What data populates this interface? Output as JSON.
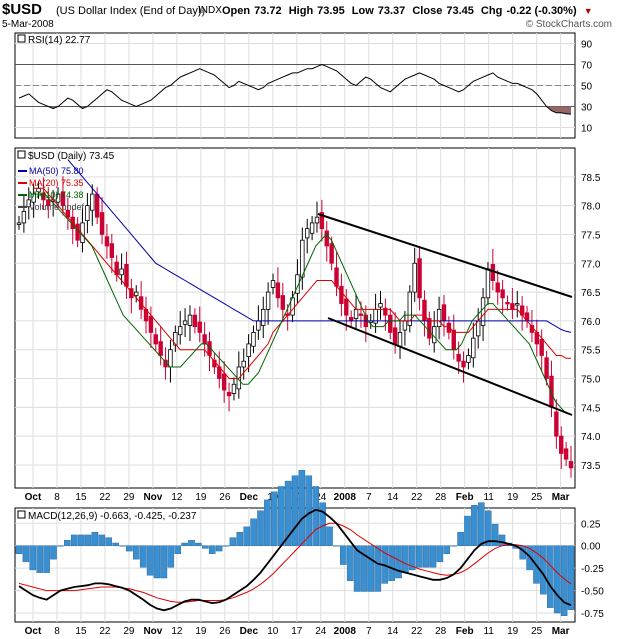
{
  "header": {
    "symbol": "$USD",
    "description": "(US Dollar Index (End of Day))",
    "exchange": "INDX",
    "open_label": "Open",
    "open": "73.72",
    "high_label": "High",
    "high": "73.95",
    "low_label": "Low",
    "low": "73.37",
    "close_label": "Close",
    "close": "73.45",
    "chg_label": "Chg",
    "chg": "-0.22 (-0.30%)",
    "down_arrow": "▼",
    "date": "5-Mar-2008",
    "source": "© StockCharts.com"
  },
  "colors": {
    "up": "#000000",
    "down": "#cc0033",
    "ma50": "#0000aa",
    "ma20": "#dd0000",
    "ma10": "#006600",
    "rsi_fill": "#996666",
    "hist": "#3a8fd0",
    "grid": "#dddddd"
  },
  "chart_data": [
    {
      "type": "line",
      "title": "RSI(14) 22.77",
      "series": [
        {
          "name": "RSI(14)",
          "values": [
            38,
            40,
            42,
            38,
            34,
            32,
            30,
            28,
            30,
            34,
            38,
            36,
            32,
            28,
            30,
            34,
            38,
            42,
            46,
            44,
            40,
            36,
            34,
            32,
            30,
            32,
            34,
            36,
            40,
            44,
            48,
            50,
            54,
            58,
            60,
            62,
            64,
            66,
            64,
            62,
            60,
            56,
            52,
            48,
            50,
            54,
            52,
            50,
            48,
            46,
            48,
            52,
            54,
            56,
            58,
            60,
            62,
            62,
            64,
            66,
            66,
            68,
            70,
            68,
            66,
            64,
            60,
            56,
            52,
            50,
            54,
            58,
            56,
            52,
            48,
            46,
            44,
            48,
            52,
            56,
            58,
            60,
            62,
            60,
            58,
            56,
            52,
            50,
            48,
            46,
            44,
            46,
            50,
            54,
            56,
            58,
            60,
            62,
            58,
            56,
            54,
            52,
            52,
            50,
            48,
            46,
            42,
            36,
            30,
            26,
            24,
            24,
            23,
            22.77
          ]
        }
      ],
      "ylim": [
        0,
        100
      ],
      "yticks": [
        "90",
        "70",
        "50",
        "30",
        "10"
      ],
      "reference_lines": [
        70,
        50,
        30
      ]
    },
    {
      "type": "line",
      "title": "$USD (Daily) 73.45",
      "legend": [
        "MA(50) 75.80",
        "MA(20) 75.35",
        "MA(10) 74.38",
        "Volume undef"
      ],
      "series": [
        {
          "name": "$USD (Daily)",
          "values": [
            77.7,
            77.9,
            78.1,
            78.2,
            78.3,
            78.1,
            78.0,
            78.1,
            78.2,
            78.0,
            77.8,
            77.6,
            77.4,
            77.7,
            78.0,
            78.2,
            77.8,
            77.5,
            77.3,
            77.1,
            76.8,
            76.9,
            76.6,
            76.4,
            76.5,
            76.2,
            76.0,
            75.8,
            75.6,
            75.4,
            75.2,
            75.5,
            75.8,
            75.9,
            76.0,
            76.1,
            75.9,
            75.8,
            75.6,
            75.4,
            75.2,
            75.0,
            74.8,
            74.7,
            74.9,
            75.2,
            75.3,
            75.6,
            75.8,
            76.0,
            76.2,
            76.5,
            76.7,
            76.4,
            76.2,
            76.1,
            76.4,
            76.8,
            77.4,
            77.6,
            77.7,
            77.8,
            77.6,
            77.3,
            77.0,
            76.6,
            76.3,
            76.1,
            76.0,
            76.2,
            76.1,
            75.9,
            76.0,
            76.2,
            76.3,
            76.1,
            75.8,
            75.6,
            75.8,
            76.0,
            76.5,
            77.0,
            76.4,
            76.0,
            75.7,
            75.9,
            76.2,
            76.0,
            75.8,
            75.5,
            75.3,
            75.2,
            75.4,
            75.7,
            76.0,
            76.4,
            76.9,
            76.7,
            76.5,
            76.4,
            76.3,
            76.2,
            76.3,
            76.1,
            76.0,
            75.8,
            75.6,
            75.4,
            75.0,
            74.5,
            74.0,
            73.7,
            73.6,
            73.45
          ]
        },
        {
          "name": "MA(50)",
          "values": [
            null,
            null,
            null,
            null,
            null,
            null,
            null,
            null,
            null,
            null,
            78.8,
            78.7,
            78.6,
            78.5,
            78.4,
            78.3,
            78.2,
            78.1,
            78.0,
            77.9,
            77.8,
            77.7,
            77.6,
            77.5,
            77.4,
            77.3,
            77.2,
            77.1,
            77.0,
            76.95,
            76.9,
            76.85,
            76.8,
            76.75,
            76.7,
            76.65,
            76.6,
            76.55,
            76.5,
            76.45,
            76.4,
            76.35,
            76.3,
            76.25,
            76.2,
            76.15,
            76.1,
            76.05,
            76.0,
            76.0,
            76.0,
            76.0,
            76.0,
            76.0,
            76.0,
            76.0,
            76.0,
            76.0,
            76.0,
            76.0,
            76.0,
            76.0,
            76.0,
            76.0,
            76.0,
            76.0,
            76.0,
            76.0,
            76.0,
            76.0,
            76.0,
            76.0,
            76.0,
            76.0,
            76.0,
            76.0,
            76.0,
            76.0,
            76.0,
            76.0,
            76.0,
            76.0,
            76.0,
            76.0,
            76.0,
            76.0,
            76.0,
            76.0,
            76.0,
            76.0,
            76.0,
            76.0,
            76.0,
            76.0,
            76.0,
            76.0,
            76.0,
            76.0,
            76.0,
            76.0,
            76.0,
            76.0,
            76.0,
            76.0,
            76.0,
            76.0,
            76.0,
            76.0,
            76.0,
            75.95,
            75.9,
            75.85,
            75.82,
            75.8
          ]
        },
        {
          "name": "MA(20)",
          "values": [
            null,
            null,
            null,
            78.3,
            78.3,
            78.3,
            78.2,
            78.1,
            78.0,
            77.9,
            77.8,
            77.7,
            77.6,
            77.5,
            77.4,
            77.3,
            77.2,
            77.1,
            77.0,
            76.9,
            76.8,
            76.7,
            76.6,
            76.5,
            76.4,
            76.3,
            76.2,
            76.1,
            76.0,
            75.9,
            75.8,
            75.7,
            75.6,
            75.5,
            75.5,
            75.5,
            75.5,
            75.5,
            75.5,
            75.4,
            75.3,
            75.2,
            75.1,
            75.0,
            75.0,
            75.0,
            75.1,
            75.2,
            75.3,
            75.4,
            75.5,
            75.6,
            75.8,
            75.9,
            76.0,
            76.1,
            76.2,
            76.3,
            76.4,
            76.5,
            76.6,
            76.7,
            76.7,
            76.7,
            76.7,
            76.6,
            76.5,
            76.4,
            76.3,
            76.2,
            76.2,
            76.2,
            76.2,
            76.2,
            76.2,
            76.2,
            76.2,
            76.1,
            76.0,
            76.0,
            76.0,
            76.1,
            76.1,
            76.1,
            76.0,
            76.0,
            76.0,
            75.9,
            75.9,
            75.8,
            75.8,
            75.8,
            75.8,
            75.9,
            76.0,
            76.1,
            76.2,
            76.2,
            76.2,
            76.2,
            76.2,
            76.2,
            76.2,
            76.1,
            76.0,
            75.9,
            75.8,
            75.7,
            75.6,
            75.5,
            75.4,
            75.4,
            75.35,
            75.35
          ]
        },
        {
          "name": "MA(10)",
          "values": [
            null,
            null,
            null,
            78.2,
            78.2,
            78.2,
            78.1,
            78.0,
            77.9,
            77.8,
            77.7,
            77.6,
            77.5,
            77.4,
            77.3,
            77.1,
            76.9,
            76.7,
            76.5,
            76.3,
            76.1,
            76.0,
            75.9,
            75.8,
            75.7,
            75.6,
            75.5,
            75.4,
            75.3,
            75.2,
            75.2,
            75.2,
            75.3,
            75.4,
            75.5,
            75.6,
            75.6,
            75.5,
            75.4,
            75.3,
            75.2,
            75.1,
            75.0,
            74.9,
            74.9,
            75.0,
            75.1,
            75.3,
            75.5,
            75.7,
            75.9,
            76.1,
            76.3,
            76.5,
            76.7,
            76.9,
            77.1,
            77.3,
            77.4,
            77.5,
            77.4,
            77.2,
            77.0,
            76.8,
            76.6,
            76.4,
            76.2,
            76.0,
            75.9,
            75.9,
            75.9,
            76.0,
            76.0,
            76.0,
            76.1,
            76.1,
            76.1,
            76.0,
            75.9,
            75.8,
            75.7,
            75.6,
            75.5,
            75.5,
            75.5,
            75.6,
            75.8,
            76.0,
            76.1,
            76.2,
            76.3,
            76.3,
            76.2,
            76.1,
            76.0,
            75.9,
            75.8,
            75.7,
            75.6,
            75.4,
            75.2,
            75.0,
            74.8,
            74.6,
            74.5,
            74.4,
            74.38
          ]
        }
      ],
      "ylim": [
        73.1,
        79.0
      ],
      "yticks": [
        "78.5",
        "78.0",
        "77.5",
        "77.0",
        "76.5",
        "76.0",
        "75.5",
        "75.0",
        "74.5",
        "74.0",
        "73.5"
      ],
      "trendlines": [
        {
          "from": [
            "Dec 20",
            77.85
          ],
          "to": [
            "Mar 6",
            76.45
          ]
        },
        {
          "from": [
            "Dec 18",
            76.15
          ],
          "to": [
            "Mar 6",
            74.4
          ]
        }
      ]
    },
    {
      "type": "line",
      "title": "MACD(12,26,9) -0.663, -0.425, -0.237",
      "series": [
        {
          "name": "MACD(12,26,9)",
          "values": [
            -0.45,
            -0.5,
            -0.55,
            -0.58,
            -0.6,
            -0.55,
            -0.5,
            -0.48,
            -0.46,
            -0.45,
            -0.44,
            -0.42,
            -0.42,
            -0.43,
            -0.45,
            -0.47,
            -0.5,
            -0.55,
            -0.6,
            -0.66,
            -0.7,
            -0.72,
            -0.7,
            -0.66,
            -0.62,
            -0.6,
            -0.6,
            -0.62,
            -0.64,
            -0.63,
            -0.6,
            -0.55,
            -0.5,
            -0.45,
            -0.38,
            -0.3,
            -0.2,
            -0.1,
            0.0,
            0.1,
            0.2,
            0.3,
            0.36,
            0.4,
            0.38,
            0.32,
            0.25,
            0.15,
            0.05,
            -0.05,
            -0.1,
            -0.15,
            -0.2,
            -0.22,
            -0.25,
            -0.28,
            -0.3,
            -0.32,
            -0.34,
            -0.36,
            -0.38,
            -0.38,
            -0.36,
            -0.32,
            -0.25,
            -0.15,
            -0.05,
            0.02,
            0.05,
            0.05,
            0.04,
            0.02,
            0.0,
            -0.05,
            -0.12,
            -0.22,
            -0.32,
            -0.45,
            -0.55,
            -0.63,
            -0.663
          ]
        },
        {
          "name": "MACD signal",
          "values": [
            -0.42,
            -0.44,
            -0.46,
            -0.48,
            -0.5,
            -0.5,
            -0.5,
            -0.5,
            -0.5,
            -0.49,
            -0.48,
            -0.47,
            -0.46,
            -0.46,
            -0.46,
            -0.47,
            -0.48,
            -0.5,
            -0.52,
            -0.55,
            -0.58,
            -0.6,
            -0.62,
            -0.63,
            -0.63,
            -0.62,
            -0.61,
            -0.61,
            -0.61,
            -0.61,
            -0.6,
            -0.58,
            -0.55,
            -0.52,
            -0.48,
            -0.43,
            -0.37,
            -0.3,
            -0.22,
            -0.14,
            -0.06,
            0.02,
            0.1,
            0.18,
            0.22,
            0.25,
            0.25,
            0.22,
            0.18,
            0.12,
            0.07,
            0.02,
            -0.03,
            -0.08,
            -0.12,
            -0.16,
            -0.2,
            -0.23,
            -0.26,
            -0.28,
            -0.3,
            -0.32,
            -0.33,
            -0.32,
            -0.3,
            -0.26,
            -0.2,
            -0.14,
            -0.08,
            -0.03,
            0.0,
            0.01,
            0.01,
            0.0,
            -0.03,
            -0.08,
            -0.14,
            -0.22,
            -0.3,
            -0.37,
            -0.425
          ]
        }
      ],
      "ylim": [
        -0.85,
        0.42
      ],
      "yticks": [
        "0.25",
        "0.00",
        "-0.25",
        "-0.50",
        "-0.75"
      ]
    }
  ],
  "x_axis": {
    "labels": [
      "Oct",
      "8",
      "15",
      "22",
      "29",
      "Nov",
      "12",
      "19",
      "26",
      "Dec",
      "10",
      "17",
      "24",
      "2008",
      "7",
      "14",
      "22",
      "28",
      "Feb",
      "11",
      "19",
      "25",
      "Mar"
    ]
  }
}
